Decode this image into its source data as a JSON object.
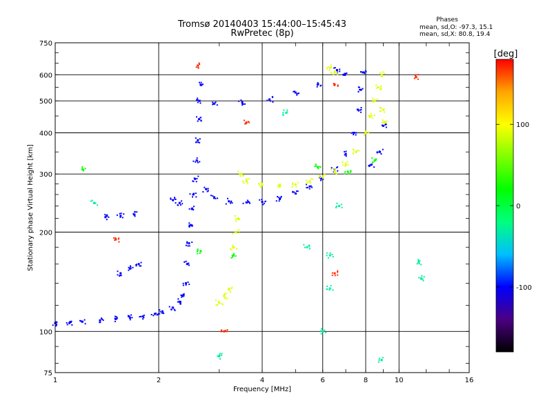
{
  "chart_data": {
    "type": "scatter",
    "title": "Tromsø 20140403 15:44:00–15:45:43",
    "subtitle": "RwPretec (8p)",
    "stats": {
      "heading": "Phases",
      "line_o": "mean, sd,O: -97.3, 15.1",
      "line_x": "mean, sd,X: 80.8, 19.4"
    },
    "xlabel": "Frequency [MHz]",
    "ylabel": "Stationary phase Virtual Height [km]",
    "x_scale": "log",
    "y_scale": "log",
    "xlim": [
      1,
      16
    ],
    "ylim": [
      75,
      750
    ],
    "x_ticks": [
      1,
      2,
      4,
      6,
      8,
      10,
      16
    ],
    "x_tick_labels": [
      "1",
      "2",
      "4",
      "6",
      "8",
      "10",
      "16"
    ],
    "y_ticks": [
      75,
      100,
      200,
      300,
      400,
      500,
      600,
      750
    ],
    "y_tick_labels": [
      "75",
      "100",
      "200",
      "300",
      "400",
      "500",
      "600",
      "750"
    ],
    "grid": true,
    "colorbar": {
      "label": "[deg]",
      "range": [
        -180,
        180
      ],
      "ticks": [
        100,
        0,
        -100
      ],
      "tick_labels": [
        "100",
        "0",
        "-100"
      ],
      "colors": [
        "#000000",
        "#4b0082",
        "#0000ff",
        "#00bfff",
        "#00ff7f",
        "#00ff00",
        "#7fff00",
        "#ffff00",
        "#ffa500",
        "#ff0000"
      ]
    },
    "series": [
      {
        "phase_deg": -100,
        "points": [
          [
            1.0,
            106
          ],
          [
            1.1,
            106
          ],
          [
            1.2,
            107
          ],
          [
            1.35,
            108
          ],
          [
            1.5,
            109
          ],
          [
            1.65,
            110
          ],
          [
            1.8,
            111
          ],
          [
            1.95,
            113
          ],
          [
            2.05,
            115
          ],
          [
            2.2,
            118
          ],
          [
            2.3,
            123
          ],
          [
            2.35,
            128
          ],
          [
            2.4,
            140
          ],
          [
            2.42,
            160
          ],
          [
            2.45,
            185
          ],
          [
            2.48,
            210
          ],
          [
            2.5,
            235
          ],
          [
            2.52,
            260
          ],
          [
            2.55,
            290
          ],
          [
            2.58,
            330
          ],
          [
            2.6,
            380
          ],
          [
            2.62,
            440
          ],
          [
            2.63,
            500
          ],
          [
            2.65,
            560
          ],
          [
            2.75,
            270
          ],
          [
            2.9,
            255
          ],
          [
            3.2,
            248
          ],
          [
            3.6,
            246
          ],
          [
            4.0,
            247
          ],
          [
            4.5,
            252
          ],
          [
            5.0,
            262
          ],
          [
            5.5,
            275
          ],
          [
            6.0,
            290
          ],
          [
            6.5,
            310
          ],
          [
            7.0,
            345
          ],
          [
            7.4,
            400
          ],
          [
            7.6,
            470
          ],
          [
            7.75,
            540
          ],
          [
            7.85,
            610
          ],
          [
            1.4,
            222
          ],
          [
            1.55,
            224
          ],
          [
            1.7,
            226
          ],
          [
            1.55,
            150
          ],
          [
            1.65,
            155
          ],
          [
            1.75,
            160
          ],
          [
            2.3,
            245
          ],
          [
            2.2,
            250
          ],
          [
            2.9,
            490
          ],
          [
            3.5,
            495
          ],
          [
            4.2,
            505
          ],
          [
            5.0,
            530
          ],
          [
            5.8,
            560
          ],
          [
            8.3,
            320
          ],
          [
            8.8,
            350
          ],
          [
            9.0,
            420
          ],
          [
            6.6,
            620
          ],
          [
            6.9,
            600
          ]
        ]
      },
      {
        "phase_deg": 90,
        "points": [
          [
            3.45,
            300
          ],
          [
            3.6,
            285
          ],
          [
            4.0,
            278
          ],
          [
            4.5,
            276
          ],
          [
            5.0,
            279
          ],
          [
            5.5,
            285
          ],
          [
            6.0,
            295
          ],
          [
            6.5,
            305
          ],
          [
            7.0,
            320
          ],
          [
            7.5,
            350
          ],
          [
            8.0,
            400
          ],
          [
            8.3,
            450
          ],
          [
            8.5,
            500
          ],
          [
            8.7,
            550
          ],
          [
            8.9,
            600
          ],
          [
            9.0,
            470
          ],
          [
            9.1,
            430
          ],
          [
            3.0,
            122
          ],
          [
            3.1,
            128
          ],
          [
            3.2,
            134
          ],
          [
            3.3,
            180
          ],
          [
            3.35,
            200
          ],
          [
            3.4,
            220
          ],
          [
            6.3,
            630
          ],
          [
            6.5,
            610
          ]
        ]
      },
      {
        "phase_deg": 20,
        "points": [
          [
            1.2,
            310
          ],
          [
            3.3,
            170
          ],
          [
            5.8,
            315
          ],
          [
            7.1,
            305
          ],
          [
            8.5,
            330
          ],
          [
            2.65,
            175
          ]
        ]
      },
      {
        "phase_deg": 170,
        "points": [
          [
            2.6,
            640
          ],
          [
            1.5,
            190
          ],
          [
            3.6,
            430
          ],
          [
            11.2,
            590
          ],
          [
            6.5,
            560
          ],
          [
            6.5,
            150
          ],
          [
            3.1,
            100
          ]
        ]
      },
      {
        "phase_deg": -30,
        "points": [
          [
            6.3,
            170
          ],
          [
            6.3,
            135
          ],
          [
            6.0,
            100
          ],
          [
            8.9,
            82
          ],
          [
            3.0,
            84
          ],
          [
            11.6,
            145
          ],
          [
            11.4,
            162
          ],
          [
            5.4,
            180
          ],
          [
            6.7,
            240
          ],
          [
            4.7,
            460
          ],
          [
            1.3,
            245
          ]
        ]
      }
    ]
  }
}
